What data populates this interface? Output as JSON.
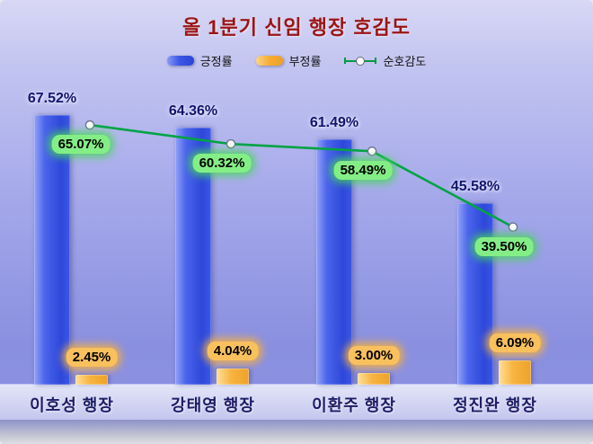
{
  "chart_data": {
    "type": "bar+line",
    "title": "올 1분기 신임 행장 호감도",
    "categories": [
      "이호성 행장",
      "강태영 행장",
      "이환주 행장",
      "정진완 행장"
    ],
    "series": [
      {
        "name": "긍정률",
        "type": "bar",
        "color": "#3a55e6",
        "values": [
          67.52,
          64.36,
          61.49,
          45.58
        ],
        "labels": [
          "67.52%",
          "64.36%",
          "61.49%",
          "45.58%"
        ]
      },
      {
        "name": "부정률",
        "type": "bar",
        "color": "#f6b23e",
        "values": [
          2.45,
          4.04,
          3.0,
          6.09
        ],
        "labels": [
          "2.45%",
          "4.04%",
          "3.00%",
          "6.09%"
        ]
      },
      {
        "name": "순호감도",
        "type": "line",
        "color": "#00a344",
        "values": [
          65.07,
          60.32,
          58.49,
          39.5
        ],
        "labels": [
          "65.07%",
          "60.32%",
          "58.49%",
          "39.50%"
        ]
      }
    ],
    "ylim": [
      0,
      75
    ],
    "legend_position": "top",
    "grid": false,
    "colors": {
      "title": "#9c1414",
      "background_top": "#d8d8f5",
      "background_bottom": "#8a8fe0",
      "value_label": "#14146e",
      "category_label": "#1d1d66",
      "green_pill": "#84ee86",
      "orange_pill": "#f9c05e"
    }
  }
}
